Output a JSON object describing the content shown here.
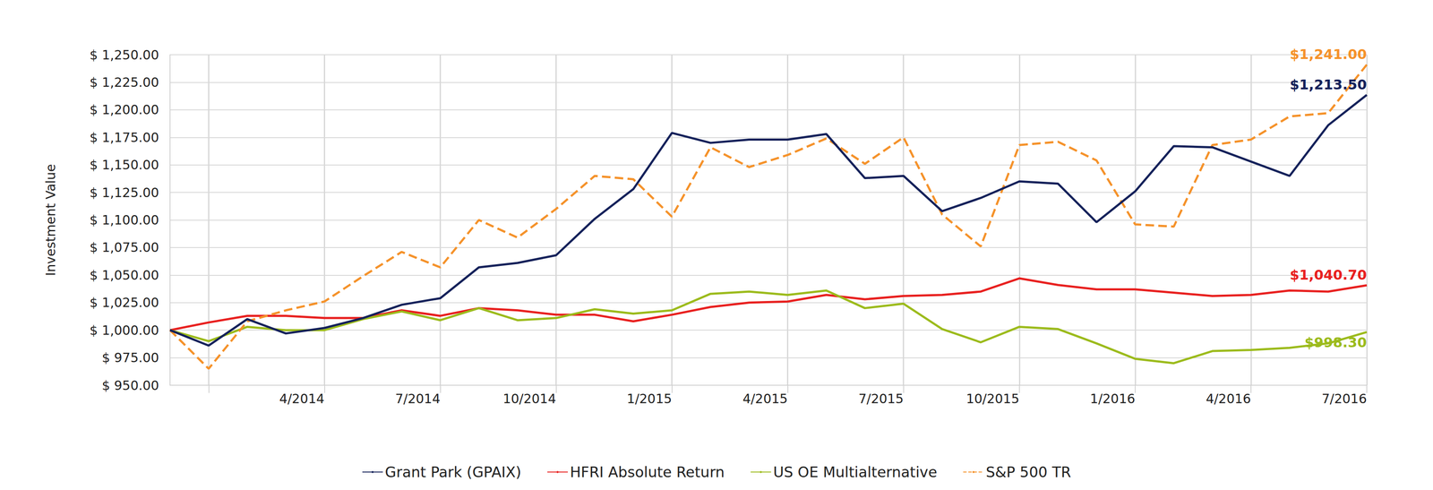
{
  "chart_data": {
    "type": "line",
    "y_label": "Investment Value",
    "x": [
      null,
      null,
      null,
      null,
      "4/2014",
      null,
      null,
      "7/2014",
      null,
      null,
      "10/2014",
      null,
      null,
      "1/2015",
      null,
      null,
      "4/2015",
      null,
      null,
      "7/2015",
      null,
      null,
      "10/2015",
      null,
      null,
      "1/2016",
      null,
      null,
      "4/2016",
      null,
      null,
      "7/2016"
    ],
    "ylim": [
      950,
      1250
    ],
    "yticks": [
      {
        "value": 950,
        "label": "$ 950.00"
      },
      {
        "value": 975,
        "label": "$ 975.00"
      },
      {
        "value": 1000,
        "label": "$ 1,000.00"
      },
      {
        "value": 1025,
        "label": "$ 1,025.00"
      },
      {
        "value": 1050,
        "label": "$ 1,050.00"
      },
      {
        "value": 1075,
        "label": "$ 1,075.00"
      },
      {
        "value": 1100,
        "label": "$ 1,100.00"
      },
      {
        "value": 1125,
        "label": "$ 1,125.00"
      },
      {
        "value": 1150,
        "label": "$ 1,150.00"
      },
      {
        "value": 1175,
        "label": "$ 1,175.00"
      },
      {
        "value": 1200,
        "label": "$ 1,200.00"
      },
      {
        "value": 1225,
        "label": "$ 1,225.00"
      },
      {
        "value": 1250,
        "label": "$ 1,250.00"
      }
    ],
    "grid": true,
    "legend": "bottom",
    "series": [
      {
        "name": "Grant Park (GPAIX)",
        "color": "#14215a",
        "line_style": "solid",
        "values": [
          1000,
          986,
          1010,
          997,
          1002,
          1011,
          1023,
          1029,
          1057,
          1061,
          1068,
          1101,
          1128,
          1179,
          1170,
          1173,
          1173,
          1178,
          1138,
          1140,
          1108,
          1120,
          1135,
          1133,
          1098,
          1126,
          1167,
          1166,
          1153,
          1140,
          1186,
          1213.5
        ],
        "value_labels": [
          null,
          null,
          null,
          null,
          null,
          null,
          null,
          null,
          null,
          null,
          null,
          null,
          null,
          null,
          null,
          null,
          null,
          null,
          null,
          null,
          null,
          null,
          null,
          null,
          null,
          null,
          null,
          null,
          null,
          null,
          null,
          "$1,213.50"
        ]
      },
      {
        "name": "HFRI Absolute Return",
        "color": "#e8201f",
        "line_style": "solid",
        "values": [
          1000,
          1007,
          1013,
          1013,
          1011,
          1011,
          1018,
          1013,
          1020,
          1018,
          1014,
          1014,
          1008,
          1014,
          1021,
          1025,
          1026,
          1032,
          1028,
          1031,
          1032,
          1035,
          1047,
          1041,
          1037,
          1037,
          1034,
          1031,
          1032,
          1036,
          1035,
          1040.7
        ],
        "value_labels": [
          null,
          null,
          null,
          null,
          null,
          null,
          null,
          null,
          null,
          null,
          null,
          null,
          null,
          null,
          null,
          null,
          null,
          null,
          null,
          null,
          null,
          null,
          null,
          null,
          null,
          null,
          null,
          null,
          null,
          null,
          null,
          "$1,040.70"
        ]
      },
      {
        "name": "US OE Multialternative",
        "color": "#9cbb1c",
        "line_style": "solid",
        "values": [
          1000,
          990,
          1003,
          1000,
          1000,
          1010,
          1017,
          1009,
          1020,
          1009,
          1011,
          1019,
          1015,
          1018,
          1033,
          1035,
          1032,
          1036,
          1020,
          1024,
          1001,
          989,
          1003,
          1001,
          988,
          974,
          970,
          981,
          982,
          984,
          988,
          998.3
        ],
        "value_labels": [
          null,
          null,
          null,
          null,
          null,
          null,
          null,
          null,
          null,
          null,
          null,
          null,
          null,
          null,
          null,
          null,
          null,
          null,
          null,
          null,
          null,
          null,
          null,
          null,
          null,
          null,
          null,
          null,
          null,
          null,
          null,
          "$998.30"
        ]
      },
      {
        "name": "S&P 500 TR",
        "color": "#f5922a",
        "line_style": "dashed",
        "values": [
          1000,
          965,
          1008,
          1018,
          1026,
          1049,
          1071,
          1057,
          1100,
          1084,
          1110,
          1140,
          1137,
          1103,
          1166,
          1148,
          1159,
          1174,
          1151,
          1175,
          1105,
          1076,
          1168,
          1171,
          1154,
          1096,
          1094,
          1168,
          1173,
          1194,
          1197,
          1241
        ],
        "value_labels": [
          null,
          null,
          null,
          null,
          null,
          null,
          null,
          null,
          null,
          null,
          null,
          null,
          null,
          null,
          null,
          null,
          null,
          null,
          null,
          null,
          null,
          null,
          null,
          null,
          null,
          null,
          null,
          null,
          null,
          null,
          null,
          "$1,241.00"
        ]
      }
    ]
  }
}
